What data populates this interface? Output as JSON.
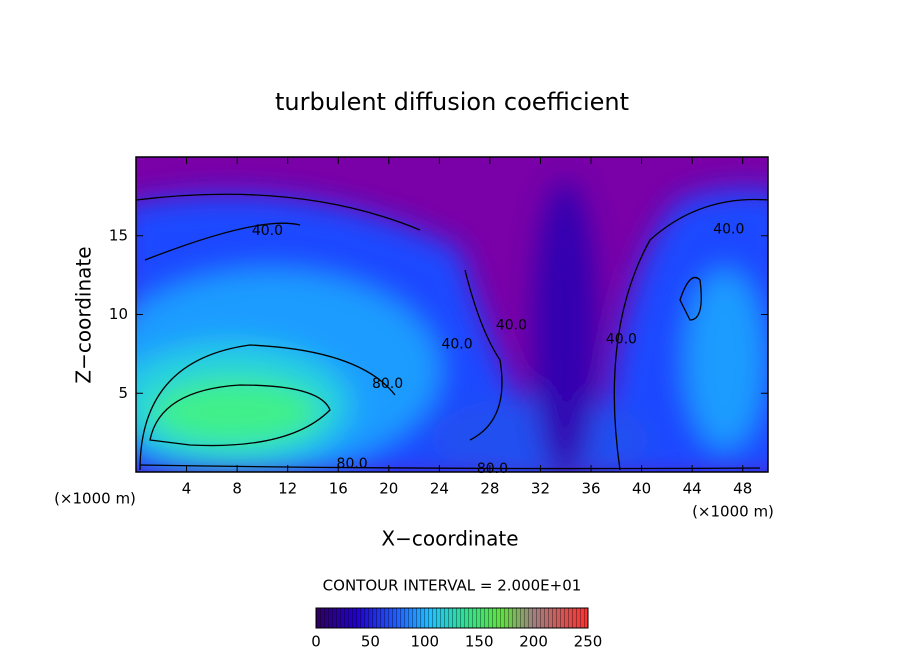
{
  "chart_data": {
    "type": "contour",
    "title": "turbulent diffusion coefficient",
    "x_label": "X−coordinate",
    "y_label": "Z−coordinate",
    "x_unit_left": "(×1000 m)",
    "x_unit_right": "(×1000 m)",
    "xlim": [
      0,
      50
    ],
    "ylim": [
      0,
      20
    ],
    "xticks": [
      4,
      8,
      12,
      16,
      20,
      24,
      28,
      32,
      36,
      40,
      44,
      48
    ],
    "yticks": [
      5,
      10,
      15
    ],
    "contour_interval": "CONTOUR INTERVAL = 2.000E+01",
    "contour_labels": [
      {
        "value": 40,
        "label": "40.0",
        "x": 10.4,
        "y": 15.3
      },
      {
        "value": 40,
        "label": "40.0",
        "x": 46.9,
        "y": 15.4
      },
      {
        "value": 80,
        "label": "80.0",
        "x": 19.9,
        "y": 5.6
      },
      {
        "value": 40,
        "label": "40.0",
        "x": 25.4,
        "y": 8.1
      },
      {
        "value": 40,
        "label": "40.0",
        "x": 29.7,
        "y": 9.3
      },
      {
        "value": 40,
        "label": "40.0",
        "x": 38.4,
        "y": 8.4
      },
      {
        "value": 80,
        "label": "80.0",
        "x": 17.1,
        "y": 0.5
      },
      {
        "value": 80,
        "label": "80.0",
        "x": 28.2,
        "y": 0.2
      }
    ],
    "colorbar_lim": [
      0,
      250
    ],
    "colorbar_ticks": [
      0,
      50,
      100,
      150,
      200,
      250
    ]
  }
}
